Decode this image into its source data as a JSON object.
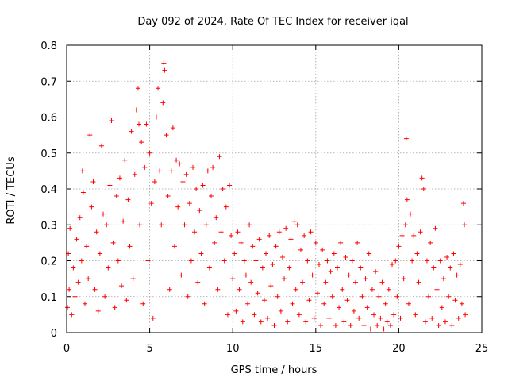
{
  "chart_data": {
    "type": "scatter",
    "title": "Day 092 of 2024, Rate Of TEC Index for receiver iqal",
    "xlabel": "GPS time / hours",
    "ylabel": "ROTI / TECUs",
    "xlim": [
      0,
      25
    ],
    "ylim": [
      0,
      0.8
    ],
    "xticks": [
      0,
      5,
      10,
      15,
      20,
      25
    ],
    "xtick_labels": [
      "0",
      "5",
      "10",
      "15",
      "20",
      "25"
    ],
    "yticks": [
      0,
      0.1,
      0.2,
      0.3,
      0.4,
      0.5,
      0.6,
      0.7,
      0.8
    ],
    "ytick_labels": [
      "0",
      "0.1",
      "0.2",
      "0.3",
      "0.4",
      "0.5",
      "0.6",
      "0.7",
      "0.8"
    ],
    "grid": true,
    "marker": "+",
    "color": "#ff0000",
    "series": [
      {
        "name": "ROTI",
        "points": [
          [
            0.05,
            0.07
          ],
          [
            0.1,
            0.22
          ],
          [
            0.15,
            0.12
          ],
          [
            0.2,
            0.29
          ],
          [
            0.3,
            0.05
          ],
          [
            0.4,
            0.18
          ],
          [
            0.5,
            0.1
          ],
          [
            0.6,
            0.26
          ],
          [
            0.7,
            0.14
          ],
          [
            0.8,
            0.32
          ],
          [
            0.9,
            0.2
          ],
          [
            0.95,
            0.45
          ],
          [
            1.0,
            0.39
          ],
          [
            1.1,
            0.08
          ],
          [
            1.2,
            0.24
          ],
          [
            1.3,
            0.15
          ],
          [
            1.4,
            0.55
          ],
          [
            1.5,
            0.35
          ],
          [
            1.6,
            0.42
          ],
          [
            1.7,
            0.12
          ],
          [
            1.8,
            0.28
          ],
          [
            1.9,
            0.06
          ],
          [
            2.0,
            0.22
          ],
          [
            2.1,
            0.52
          ],
          [
            2.2,
            0.33
          ],
          [
            2.3,
            0.1
          ],
          [
            2.4,
            0.3
          ],
          [
            2.5,
            0.18
          ],
          [
            2.6,
            0.41
          ],
          [
            2.7,
            0.59
          ],
          [
            2.8,
            0.25
          ],
          [
            2.9,
            0.07
          ],
          [
            3.0,
            0.38
          ],
          [
            3.1,
            0.2
          ],
          [
            3.2,
            0.43
          ],
          [
            3.3,
            0.13
          ],
          [
            3.4,
            0.31
          ],
          [
            3.5,
            0.48
          ],
          [
            3.6,
            0.09
          ],
          [
            3.7,
            0.37
          ],
          [
            3.8,
            0.24
          ],
          [
            3.9,
            0.56
          ],
          [
            4.0,
            0.15
          ],
          [
            4.1,
            0.44
          ],
          [
            4.2,
            0.62
          ],
          [
            4.3,
            0.68
          ],
          [
            4.35,
            0.58
          ],
          [
            4.4,
            0.3
          ],
          [
            4.5,
            0.53
          ],
          [
            4.6,
            0.08
          ],
          [
            4.7,
            0.46
          ],
          [
            4.8,
            0.58
          ],
          [
            4.9,
            0.2
          ],
          [
            5.0,
            0.5
          ],
          [
            5.1,
            0.36
          ],
          [
            5.2,
            0.04
          ],
          [
            5.3,
            0.42
          ],
          [
            5.4,
            0.6
          ],
          [
            5.5,
            0.68
          ],
          [
            5.6,
            0.45
          ],
          [
            5.7,
            0.3
          ],
          [
            5.8,
            0.64
          ],
          [
            5.85,
            0.75
          ],
          [
            5.9,
            0.73
          ],
          [
            6.0,
            0.55
          ],
          [
            6.1,
            0.38
          ],
          [
            6.2,
            0.12
          ],
          [
            6.3,
            0.45
          ],
          [
            6.4,
            0.57
          ],
          [
            6.5,
            0.24
          ],
          [
            6.6,
            0.48
          ],
          [
            6.7,
            0.35
          ],
          [
            6.8,
            0.47
          ],
          [
            6.9,
            0.16
          ],
          [
            7.0,
            0.42
          ],
          [
            7.1,
            0.3
          ],
          [
            7.2,
            0.44
          ],
          [
            7.3,
            0.1
          ],
          [
            7.4,
            0.36
          ],
          [
            7.5,
            0.2
          ],
          [
            7.6,
            0.46
          ],
          [
            7.7,
            0.28
          ],
          [
            7.8,
            0.4
          ],
          [
            7.9,
            0.14
          ],
          [
            8.0,
            0.34
          ],
          [
            8.1,
            0.22
          ],
          [
            8.2,
            0.41
          ],
          [
            8.3,
            0.08
          ],
          [
            8.4,
            0.3
          ],
          [
            8.5,
            0.45
          ],
          [
            8.6,
            0.18
          ],
          [
            8.7,
            0.38
          ],
          [
            8.8,
            0.46
          ],
          [
            8.9,
            0.25
          ],
          [
            9.0,
            0.32
          ],
          [
            9.1,
            0.12
          ],
          [
            9.2,
            0.49
          ],
          [
            9.3,
            0.28
          ],
          [
            9.4,
            0.4
          ],
          [
            9.5,
            0.2
          ],
          [
            9.6,
            0.35
          ],
          [
            9.7,
            0.05
          ],
          [
            9.8,
            0.41
          ],
          [
            9.9,
            0.27
          ],
          [
            10.0,
            0.15
          ],
          [
            10.1,
            0.22
          ],
          [
            10.2,
            0.06
          ],
          [
            10.3,
            0.28
          ],
          [
            10.4,
            0.12
          ],
          [
            10.5,
            0.25
          ],
          [
            10.6,
            0.03
          ],
          [
            10.7,
            0.2
          ],
          [
            10.8,
            0.16
          ],
          [
            10.9,
            0.08
          ],
          [
            11.0,
            0.3
          ],
          [
            11.1,
            0.14
          ],
          [
            11.2,
            0.24
          ],
          [
            11.3,
            0.05
          ],
          [
            11.4,
            0.2
          ],
          [
            11.5,
            0.11
          ],
          [
            11.6,
            0.26
          ],
          [
            11.7,
            0.03
          ],
          [
            11.8,
            0.18
          ],
          [
            11.9,
            0.09
          ],
          [
            12.0,
            0.22
          ],
          [
            12.1,
            0.04
          ],
          [
            12.2,
            0.27
          ],
          [
            12.3,
            0.13
          ],
          [
            12.4,
            0.19
          ],
          [
            12.5,
            0.02
          ],
          [
            12.6,
            0.24
          ],
          [
            12.7,
            0.1
          ],
          [
            12.8,
            0.28
          ],
          [
            12.9,
            0.06
          ],
          [
            13.0,
            0.21
          ],
          [
            13.1,
            0.15
          ],
          [
            13.2,
            0.29
          ],
          [
            13.3,
            0.03
          ],
          [
            13.4,
            0.18
          ],
          [
            13.5,
            0.26
          ],
          [
            13.6,
            0.08
          ],
          [
            13.7,
            0.31
          ],
          [
            13.8,
            0.12
          ],
          [
            13.9,
            0.3
          ],
          [
            14.0,
            0.05
          ],
          [
            14.1,
            0.23
          ],
          [
            14.2,
            0.14
          ],
          [
            14.3,
            0.27
          ],
          [
            14.4,
            0.03
          ],
          [
            14.5,
            0.2
          ],
          [
            14.6,
            0.09
          ],
          [
            14.7,
            0.28
          ],
          [
            14.8,
            0.16
          ],
          [
            14.9,
            0.04
          ],
          [
            15.0,
            0.25
          ],
          [
            15.1,
            0.11
          ],
          [
            15.2,
            0.19
          ],
          [
            15.3,
            0.02
          ],
          [
            15.4,
            0.23
          ],
          [
            15.5,
            0.08
          ],
          [
            15.6,
            0.14
          ],
          [
            15.7,
            0.2
          ],
          [
            15.8,
            0.04
          ],
          [
            15.9,
            0.17
          ],
          [
            16.0,
            0.1
          ],
          [
            16.1,
            0.22
          ],
          [
            16.2,
            0.02
          ],
          [
            16.3,
            0.18
          ],
          [
            16.4,
            0.07
          ],
          [
            16.5,
            0.25
          ],
          [
            16.6,
            0.12
          ],
          [
            16.7,
            0.03
          ],
          [
            16.8,
            0.21
          ],
          [
            16.9,
            0.09
          ],
          [
            17.0,
            0.16
          ],
          [
            17.1,
            0.02
          ],
          [
            17.2,
            0.2
          ],
          [
            17.3,
            0.06
          ],
          [
            17.4,
            0.14
          ],
          [
            17.5,
            0.25
          ],
          [
            17.6,
            0.04
          ],
          [
            17.7,
            0.18
          ],
          [
            17.8,
            0.1
          ],
          [
            17.9,
            0.02
          ],
          [
            18.0,
            0.15
          ],
          [
            18.1,
            0.07
          ],
          [
            18.2,
            0.22
          ],
          [
            18.3,
            0.01
          ],
          [
            18.4,
            0.12
          ],
          [
            18.5,
            0.05
          ],
          [
            18.6,
            0.17
          ],
          [
            18.7,
            0.02
          ],
          [
            18.8,
            0.1
          ],
          [
            18.9,
            0.04
          ],
          [
            19.0,
            0.14
          ],
          [
            19.1,
            0.01
          ],
          [
            19.2,
            0.08
          ],
          [
            19.3,
            0.03
          ],
          [
            19.4,
            0.12
          ],
          [
            19.5,
            0.02
          ],
          [
            19.6,
            0.19
          ],
          [
            19.7,
            0.05
          ],
          [
            19.8,
            0.2
          ],
          [
            19.9,
            0.1
          ],
          [
            20.0,
            0.24
          ],
          [
            20.1,
            0.04
          ],
          [
            20.2,
            0.27
          ],
          [
            20.3,
            0.15
          ],
          [
            20.4,
            0.3
          ],
          [
            20.45,
            0.54
          ],
          [
            20.5,
            0.37
          ],
          [
            20.6,
            0.08
          ],
          [
            20.7,
            0.33
          ],
          [
            20.8,
            0.2
          ],
          [
            20.9,
            0.27
          ],
          [
            21.0,
            0.05
          ],
          [
            21.1,
            0.22
          ],
          [
            21.2,
            0.14
          ],
          [
            21.3,
            0.28
          ],
          [
            21.4,
            0.43
          ],
          [
            21.5,
            0.4
          ],
          [
            21.6,
            0.03
          ],
          [
            21.7,
            0.2
          ],
          [
            21.8,
            0.1
          ],
          [
            21.9,
            0.25
          ],
          [
            22.0,
            0.04
          ],
          [
            22.1,
            0.18
          ],
          [
            22.2,
            0.29
          ],
          [
            22.3,
            0.12
          ],
          [
            22.4,
            0.02
          ],
          [
            22.5,
            0.2
          ],
          [
            22.6,
            0.07
          ],
          [
            22.7,
            0.15
          ],
          [
            22.8,
            0.03
          ],
          [
            22.9,
            0.21
          ],
          [
            23.0,
            0.1
          ],
          [
            23.1,
            0.18
          ],
          [
            23.2,
            0.02
          ],
          [
            23.3,
            0.22
          ],
          [
            23.4,
            0.09
          ],
          [
            23.5,
            0.16
          ],
          [
            23.6,
            0.04
          ],
          [
            23.7,
            0.19
          ],
          [
            23.8,
            0.08
          ],
          [
            23.9,
            0.36
          ],
          [
            23.95,
            0.3
          ],
          [
            24.0,
            0.05
          ]
        ]
      }
    ]
  }
}
